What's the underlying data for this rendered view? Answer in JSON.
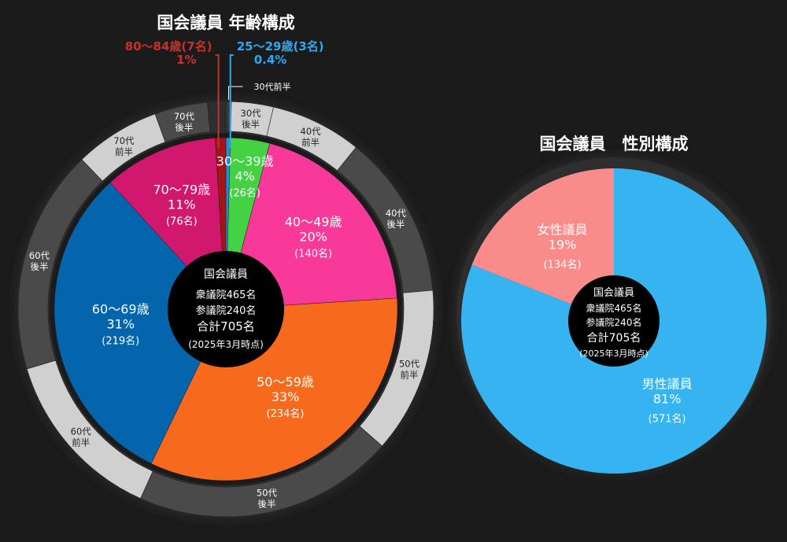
{
  "chart_data": [
    {
      "type": "pie",
      "title": "国会議員 年齢構成",
      "unit": "名",
      "slices": [
        {
          "label": "25〜29歳",
          "count_text": "(3名)",
          "pct_text": "0.4%",
          "value": 3,
          "color": "#1f8fe0",
          "label_color": "#2ea8f0"
        },
        {
          "label": "30〜39歳",
          "count_text": "(26名)",
          "pct_text": "4%",
          "value": 26,
          "color": "#44d144"
        },
        {
          "label": "40〜49歳",
          "count_text": "(140名)",
          "pct_text": "20%",
          "value": 140,
          "color": "#f8399a"
        },
        {
          "label": "50〜59歳",
          "count_text": "(234名)",
          "pct_text": "33%",
          "value": 234,
          "color": "#f76a1e"
        },
        {
          "label": "60〜69歳",
          "count_text": "(219名)",
          "pct_text": "31%",
          "value": 219,
          "color": "#0565ac"
        },
        {
          "label": "70〜79歳",
          "count_text": "(76名)",
          "pct_text": "11%",
          "value": 76,
          "color": "#d1176e"
        },
        {
          "label": "80〜84歳",
          "count_text": "(7名)",
          "pct_text": "1%",
          "value": 7,
          "color": "#a3141b",
          "label_color": "#c8302a"
        }
      ],
      "outer_ring": [
        {
          "label": "30代前半",
          "value": 3,
          "color": "#3a3a3a"
        },
        {
          "label": "30代\n後半",
          "value": 23,
          "color": "#d0d0d0"
        },
        {
          "label": "40代\n前半",
          "value": 50,
          "color": "#d0d0d0"
        },
        {
          "label": "40代\n後半",
          "value": 90,
          "color": "#4a4a4a"
        },
        {
          "label": "50代\n前半",
          "value": 91,
          "color": "#d0d0d0"
        },
        {
          "label": "50代\n後半",
          "value": 143,
          "color": "#4a4a4a"
        },
        {
          "label": "60代\n前半",
          "value": 96,
          "color": "#d0d0d0"
        },
        {
          "label": "60代\n後半",
          "value": 123,
          "color": "#4a4a4a"
        },
        {
          "label": "70代\n前半",
          "value": 47,
          "color": "#d0d0d0"
        },
        {
          "label": "70代\n後半",
          "value": 29,
          "color": "#4a4a4a"
        }
      ],
      "center_text": [
        "国会議員",
        "衆議院465名",
        "参議院240名",
        "合計705名",
        "(2025年3月時点)"
      ]
    },
    {
      "type": "pie",
      "title": "国会議員　性別構成",
      "unit": "名",
      "slices": [
        {
          "label": "男性議員",
          "pct_text": "81%",
          "count_text": "(571名)",
          "value": 571,
          "color": "#36b4f2"
        },
        {
          "label": "女性議員",
          "pct_text": "19%",
          "count_text": "(134名)",
          "value": 134,
          "color": "#f98b8a"
        }
      ],
      "center_text": [
        "国会議員",
        "衆議院465名",
        "参議院240名",
        "合計705名",
        "(2025年3月時点)"
      ]
    }
  ]
}
